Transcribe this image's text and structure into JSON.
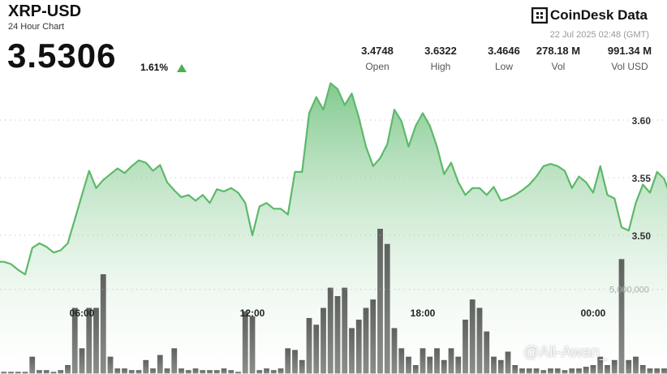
{
  "header": {
    "title": "XRP-USD",
    "subtitle": "24 Hour Chart",
    "price": "3.5306",
    "change": "1.61%",
    "brand": "CoinDesk Data",
    "timestamp": "22 Jul 2025 02:48 (GMT)",
    "stats": [
      {
        "value": "3.4748",
        "label": "Open"
      },
      {
        "value": "3.6322",
        "label": "High"
      },
      {
        "value": "3.4646",
        "label": "Low"
      },
      {
        "value": "278.18 M",
        "label": "Vol"
      },
      {
        "value": "991.34 M",
        "label": "Vol USD"
      }
    ],
    "watermark": "@Ali-Awan_"
  },
  "chart_data": {
    "type": "area",
    "categories": [
      null,
      null,
      null,
      null,
      null,
      null,
      null,
      null,
      null,
      null,
      null,
      null,
      "06:00",
      null,
      null,
      null,
      null,
      null,
      null,
      null,
      null,
      null,
      null,
      null,
      null,
      null,
      null,
      null,
      null,
      null,
      null,
      null,
      null,
      null,
      null,
      null,
      "12:00",
      null,
      null,
      null,
      null,
      null,
      null,
      null,
      null,
      null,
      null,
      null,
      null,
      null,
      null,
      null,
      null,
      null,
      null,
      null,
      null,
      null,
      null,
      null,
      "18:00",
      null,
      null,
      null,
      null,
      null,
      null,
      null,
      null,
      null,
      null,
      null,
      null,
      null,
      null,
      null,
      null,
      null,
      null,
      null,
      null,
      null,
      null,
      null,
      "00:00",
      null,
      null,
      null,
      null,
      null,
      null,
      null,
      null,
      null,
      null,
      null
    ],
    "series": [
      {
        "name": "Price",
        "color": "#5cb96a",
        "values": [
          3.477,
          3.477,
          3.475,
          3.47,
          3.466,
          3.489,
          3.493,
          3.49,
          3.485,
          3.487,
          3.493,
          3.514,
          3.535,
          3.556,
          3.541,
          3.548,
          3.553,
          3.558,
          3.554,
          3.56,
          3.565,
          3.563,
          3.556,
          3.561,
          3.546,
          3.539,
          3.533,
          3.535,
          3.53,
          3.535,
          3.528,
          3.54,
          3.538,
          3.541,
          3.537,
          3.528,
          3.5,
          3.525,
          3.528,
          3.523,
          3.523,
          3.518,
          3.555,
          3.555,
          3.606,
          3.62,
          3.609,
          3.632,
          3.627,
          3.613,
          3.623,
          3.602,
          3.577,
          3.56,
          3.567,
          3.579,
          3.609,
          3.599,
          3.577,
          3.595,
          3.606,
          3.595,
          3.577,
          3.553,
          3.563,
          3.546,
          3.535,
          3.541,
          3.541,
          3.535,
          3.542,
          3.53,
          3.532,
          3.535,
          3.539,
          3.544,
          3.551,
          3.56,
          3.562,
          3.56,
          3.556,
          3.541,
          3.551,
          3.546,
          3.537,
          3.56,
          3.535,
          3.532,
          3.507,
          3.504,
          3.528,
          3.544,
          3.537,
          3.555,
          3.549,
          3.532
        ]
      },
      {
        "name": "Volume",
        "color": "#6d706d",
        "axis": "y2",
        "values": [
          100000,
          100000,
          100000,
          100000,
          100000,
          1000000,
          200000,
          200000,
          100000,
          200000,
          500000,
          3900000,
          1500000,
          3900000,
          3900000,
          5900000,
          1000000,
          300000,
          300000,
          200000,
          200000,
          800000,
          300000,
          1100000,
          300000,
          1500000,
          300000,
          200000,
          300000,
          200000,
          200000,
          200000,
          300000,
          200000,
          100000,
          3700000,
          3400000,
          200000,
          300000,
          200000,
          300000,
          1500000,
          1400000,
          800000,
          3300000,
          2900000,
          3900000,
          5100000,
          4600000,
          5100000,
          2700000,
          3200000,
          3900000,
          4400000,
          8600000,
          7700000,
          2700000,
          1500000,
          1000000,
          500000,
          1500000,
          1000000,
          1500000,
          800000,
          1500000,
          1000000,
          3200000,
          4400000,
          3900000,
          2500000,
          1000000,
          800000,
          1300000,
          500000,
          300000,
          300000,
          300000,
          200000,
          300000,
          300000,
          200000,
          300000,
          300000,
          400000,
          500000,
          1000000,
          500000,
          800000,
          6800000,
          800000,
          1000000,
          500000,
          300000,
          300000,
          300000,
          200000
        ]
      }
    ],
    "ylim": [
      3.38,
      3.64
    ],
    "yticks": [
      {
        "value": 3.5,
        "label": "3.50"
      },
      3.55,
      {
        "value": 3.6,
        "label": "3.60"
      }
    ],
    "y2lim": [
      0,
      17800000
    ],
    "y2ticks": [
      {
        "value": 5000000,
        "label": "5,000,000"
      }
    ],
    "grid": true
  }
}
